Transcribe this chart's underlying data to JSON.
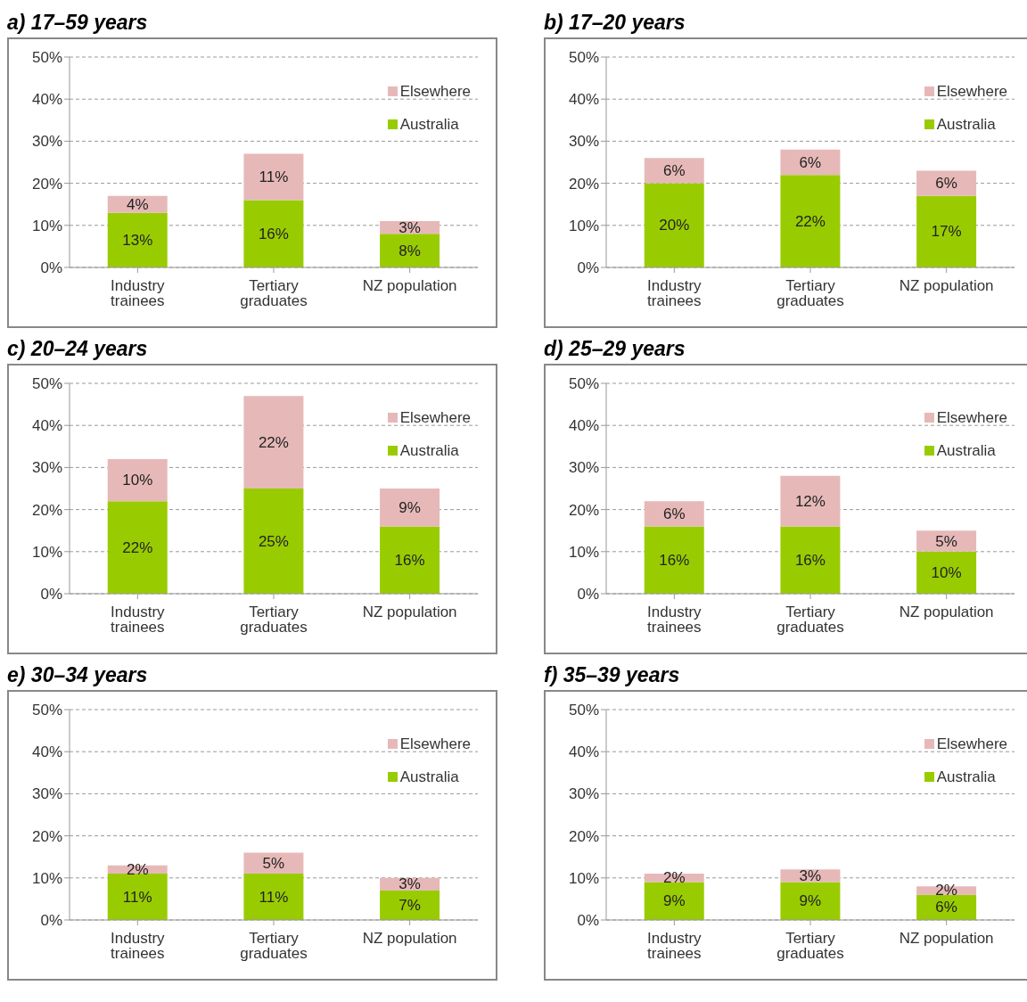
{
  "chart_data": [
    {
      "type": "bar",
      "title": "a) 17–59 years",
      "categories": [
        "Industry trainees",
        "Tertiary graduates",
        "NZ population"
      ],
      "stacked": true,
      "ylim": [
        0,
        50
      ],
      "yticks": [
        {
          "value": 0,
          "label": "0%"
        },
        {
          "value": 10,
          "label": "10%"
        },
        {
          "value": 20,
          "label": "20%"
        },
        {
          "value": 30,
          "label": "30%"
        },
        {
          "value": 40,
          "label": "40%"
        },
        {
          "value": 50,
          "label": "50%"
        }
      ],
      "grid": "y",
      "legend": "top right",
      "series": [
        {
          "name": "Australia",
          "color": "#99cc00",
          "values": [
            13,
            16,
            8
          ],
          "value_labels": [
            "13%",
            "16%",
            "8%"
          ]
        },
        {
          "name": "Elsewhere",
          "color": "#e6b9b8",
          "values": [
            4,
            11,
            3
          ],
          "value_labels": [
            "4%",
            "11%",
            "3%"
          ]
        }
      ]
    },
    {
      "type": "bar",
      "title": "b) 17–20 years",
      "categories": [
        "Industry trainees",
        "Tertiary graduates",
        "NZ population"
      ],
      "stacked": true,
      "ylim": [
        0,
        50
      ],
      "yticks": [
        {
          "value": 0,
          "label": "0%"
        },
        {
          "value": 10,
          "label": "10%"
        },
        {
          "value": 20,
          "label": "20%"
        },
        {
          "value": 30,
          "label": "30%"
        },
        {
          "value": 40,
          "label": "40%"
        },
        {
          "value": 50,
          "label": "50%"
        }
      ],
      "grid": "y",
      "legend": "top right",
      "series": [
        {
          "name": "Australia",
          "color": "#99cc00",
          "values": [
            20,
            22,
            17
          ],
          "value_labels": [
            "20%",
            "22%",
            "17%"
          ]
        },
        {
          "name": "Elsewhere",
          "color": "#e6b9b8",
          "values": [
            6,
            6,
            6
          ],
          "value_labels": [
            "6%",
            "6%",
            "6%"
          ]
        }
      ]
    },
    {
      "type": "bar",
      "title": "c) 20–24 years",
      "categories": [
        "Industry trainees",
        "Tertiary graduates",
        "NZ population"
      ],
      "stacked": true,
      "ylim": [
        0,
        50
      ],
      "yticks": [
        {
          "value": 0,
          "label": "0%"
        },
        {
          "value": 10,
          "label": "10%"
        },
        {
          "value": 20,
          "label": "20%"
        },
        {
          "value": 30,
          "label": "30%"
        },
        {
          "value": 40,
          "label": "40%"
        },
        {
          "value": 50,
          "label": "50%"
        }
      ],
      "grid": "y",
      "legend": "top right",
      "series": [
        {
          "name": "Australia",
          "color": "#99cc00",
          "values": [
            22,
            25,
            16
          ],
          "value_labels": [
            "22%",
            "25%",
            "16%"
          ]
        },
        {
          "name": "Elsewhere",
          "color": "#e6b9b8",
          "values": [
            10,
            22,
            9
          ],
          "value_labels": [
            "10%",
            "22%",
            "9%"
          ]
        }
      ]
    },
    {
      "type": "bar",
      "title": "d) 25–29 years",
      "categories": [
        "Industry trainees",
        "Tertiary graduates",
        "NZ population"
      ],
      "stacked": true,
      "ylim": [
        0,
        50
      ],
      "yticks": [
        {
          "value": 0,
          "label": "0%"
        },
        {
          "value": 10,
          "label": "10%"
        },
        {
          "value": 20,
          "label": "20%"
        },
        {
          "value": 30,
          "label": "30%"
        },
        {
          "value": 40,
          "label": "40%"
        },
        {
          "value": 50,
          "label": "50%"
        }
      ],
      "grid": "y",
      "legend": "top right",
      "series": [
        {
          "name": "Australia",
          "color": "#99cc00",
          "values": [
            16,
            16,
            10
          ],
          "value_labels": [
            "16%",
            "16%",
            "10%"
          ]
        },
        {
          "name": "Elsewhere",
          "color": "#e6b9b8",
          "values": [
            6,
            12,
            5
          ],
          "value_labels": [
            "6%",
            "12%",
            "5%"
          ]
        }
      ]
    },
    {
      "type": "bar",
      "title": "e) 30–34 years",
      "categories": [
        "Industry trainees",
        "Tertiary graduates",
        "NZ population"
      ],
      "stacked": true,
      "ylim": [
        0,
        50
      ],
      "yticks": [
        {
          "value": 0,
          "label": "0%"
        },
        {
          "value": 10,
          "label": "10%"
        },
        {
          "value": 20,
          "label": "20%"
        },
        {
          "value": 30,
          "label": "30%"
        },
        {
          "value": 40,
          "label": "40%"
        },
        {
          "value": 50,
          "label": "50%"
        }
      ],
      "grid": "y",
      "legend": "top right",
      "series": [
        {
          "name": "Australia",
          "color": "#99cc00",
          "values": [
            11,
            11,
            7
          ],
          "value_labels": [
            "11%",
            "11%",
            "7%"
          ]
        },
        {
          "name": "Elsewhere",
          "color": "#e6b9b8",
          "values": [
            2,
            5,
            3
          ],
          "value_labels": [
            "2%",
            "5%",
            "3%"
          ]
        }
      ]
    },
    {
      "type": "bar",
      "title": "f) 35–39 years",
      "categories": [
        "Industry trainees",
        "Tertiary graduates",
        "NZ population"
      ],
      "stacked": true,
      "ylim": [
        0,
        50
      ],
      "yticks": [
        {
          "value": 0,
          "label": "0%"
        },
        {
          "value": 10,
          "label": "10%"
        },
        {
          "value": 20,
          "label": "20%"
        },
        {
          "value": 30,
          "label": "30%"
        },
        {
          "value": 40,
          "label": "40%"
        },
        {
          "value": 50,
          "label": "50%"
        }
      ],
      "grid": "y",
      "legend": "top right",
      "series": [
        {
          "name": "Australia",
          "color": "#99cc00",
          "values": [
            9,
            9,
            6
          ],
          "value_labels": [
            "9%",
            "9%",
            "6%"
          ]
        },
        {
          "name": "Elsewhere",
          "color": "#e6b9b8",
          "values": [
            2,
            3,
            2
          ],
          "value_labels": [
            "2%",
            "3%",
            "2%"
          ]
        }
      ]
    }
  ]
}
